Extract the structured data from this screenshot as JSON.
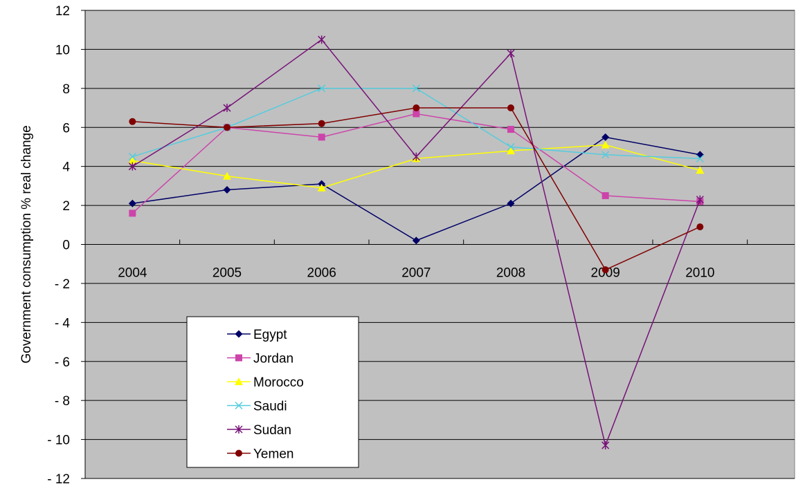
{
  "chart_data": {
    "type": "line",
    "title": "",
    "xlabel": "",
    "ylabel": "Government consumption % real change",
    "categories": [
      "2004",
      "2005",
      "2006",
      "2007",
      "2008",
      "2009",
      "2010"
    ],
    "ylim": [
      -12,
      12
    ],
    "y_ticks": [
      12,
      10,
      8,
      6,
      4,
      2,
      0,
      -2,
      -4,
      -6,
      -8,
      -10,
      -12
    ],
    "y_tick_labels": [
      "12",
      "10",
      "8",
      "6",
      "4",
      "2",
      "0",
      "- 2",
      "- 4",
      "- 6",
      "- 8",
      "- 10",
      "- 12"
    ],
    "grid": true,
    "legend_position": "lower-left",
    "series": [
      {
        "name": "Egypt",
        "color": "#000066",
        "marker": "diamond",
        "values": [
          2.1,
          2.8,
          3.1,
          0.2,
          2.1,
          5.5,
          4.6
        ]
      },
      {
        "name": "Jordan",
        "color": "#cc44aa",
        "marker": "square",
        "values": [
          1.6,
          6.0,
          5.5,
          6.7,
          5.9,
          2.5,
          2.2
        ]
      },
      {
        "name": "Morocco",
        "color": "#ffff00",
        "marker": "triangle",
        "values": [
          4.3,
          3.5,
          2.9,
          4.4,
          4.8,
          5.1,
          3.8
        ]
      },
      {
        "name": "Saudi",
        "color": "#55ccdd",
        "marker": "x",
        "values": [
          4.5,
          6.0,
          8.0,
          8.0,
          5.0,
          4.6,
          4.4
        ]
      },
      {
        "name": "Sudan",
        "color": "#771177",
        "marker": "star",
        "values": [
          4.0,
          7.0,
          10.5,
          4.5,
          9.8,
          -10.3,
          2.3
        ]
      },
      {
        "name": "Yemen",
        "color": "#800000",
        "marker": "circle",
        "values": [
          6.3,
          6.0,
          6.2,
          7.0,
          7.0,
          -1.3,
          0.9
        ]
      }
    ]
  }
}
